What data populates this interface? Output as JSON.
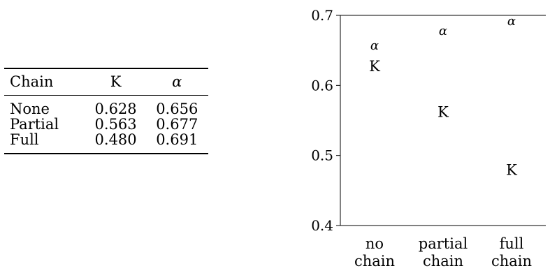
{
  "table": {
    "headers": [
      "Chain",
      "K",
      "α"
    ],
    "rows": [
      {
        "chain": "None",
        "k": "0.628",
        "alpha": "0.656"
      },
      {
        "chain": "Partial",
        "k": "0.563",
        "alpha": "0.677"
      },
      {
        "chain": "Full",
        "k": "0.480",
        "alpha": "0.691"
      }
    ]
  },
  "chart_data": {
    "type": "scatter",
    "categories": [
      [
        "no",
        "chain"
      ],
      [
        "partial",
        "chain"
      ],
      [
        "full",
        "chain"
      ]
    ],
    "ylim": [
      0.4,
      0.7
    ],
    "yticks": [
      0.4,
      0.5,
      0.6,
      0.7
    ],
    "ytick_labels": [
      "0.4",
      "0.5",
      "0.6",
      "0.7"
    ],
    "series": [
      {
        "marker": "K",
        "values": [
          0.628,
          0.563,
          0.48
        ]
      },
      {
        "marker": "α",
        "values": [
          0.656,
          0.677,
          0.691
        ]
      }
    ],
    "grid": false,
    "legend": "none"
  }
}
